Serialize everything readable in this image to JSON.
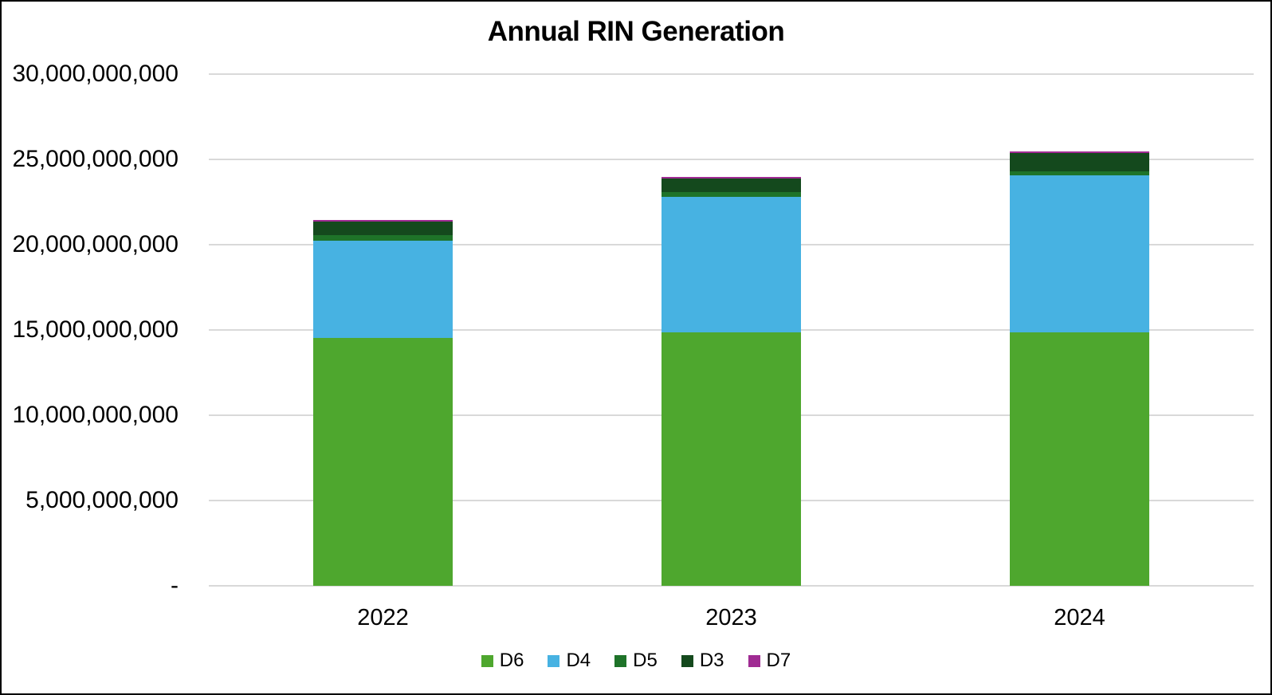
{
  "window": {
    "background": "#FFFFFF",
    "frame_border_color": "#000000"
  },
  "chart_data": {
    "type": "bar",
    "stacked": true,
    "title": "Annual RIN Generation",
    "categories": [
      "2022",
      "2023",
      "2024"
    ],
    "series": [
      {
        "name": "D6",
        "color": "#4EA72E",
        "values": [
          14550000000,
          14850000000,
          14850000000
        ]
      },
      {
        "name": "D4",
        "color": "#47B2E2",
        "values": [
          5700000000,
          7950000000,
          9200000000
        ]
      },
      {
        "name": "D5",
        "color": "#1E7329",
        "values": [
          300000000,
          280000000,
          230000000
        ]
      },
      {
        "name": "D3",
        "color": "#14491D",
        "values": [
          800000000,
          800000000,
          1100000000
        ]
      },
      {
        "name": "D7",
        "color": "#A02B93",
        "values": [
          40000000,
          40000000,
          40000000
        ]
      }
    ],
    "xlabel": "",
    "ylabel": "",
    "ylim": [
      0,
      30000000000
    ],
    "y_ticks": [
      {
        "value": 0,
        "label": "-"
      },
      {
        "value": 5000000000,
        "label": "5,000,000,000"
      },
      {
        "value": 10000000000,
        "label": "10,000,000,000"
      },
      {
        "value": 15000000000,
        "label": "15,000,000,000"
      },
      {
        "value": 20000000000,
        "label": "20,000,000,000"
      },
      {
        "value": 25000000000,
        "label": "25,000,000,000"
      },
      {
        "value": 30000000000,
        "label": "30,000,000,000"
      }
    ],
    "grid": true,
    "gridline_color": "#D9D9D9",
    "text_color": "#000000",
    "legend_position": "bottom"
  }
}
